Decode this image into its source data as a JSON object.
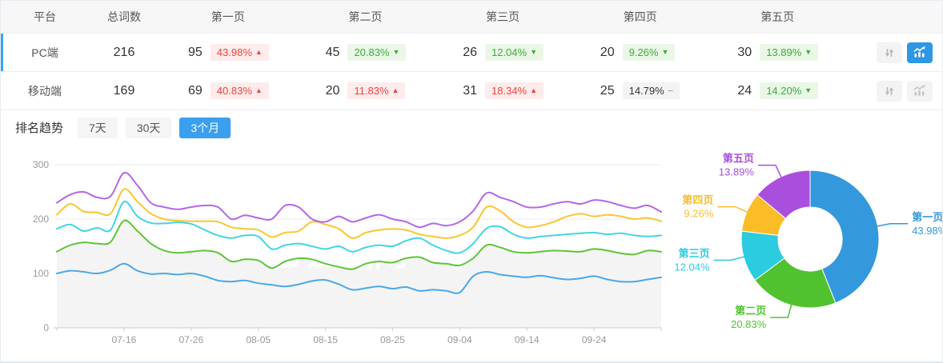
{
  "table": {
    "headers": {
      "platform": "平台",
      "total": "总词数",
      "pages": [
        "第一页",
        "第二页",
        "第三页",
        "第四页",
        "第五页"
      ]
    },
    "rows": [
      {
        "platform": "PC端",
        "total": "216",
        "selected": true,
        "pages": [
          {
            "count": "95",
            "pct": "43.98%",
            "dir": "up"
          },
          {
            "count": "45",
            "pct": "20.83%",
            "dir": "down"
          },
          {
            "count": "26",
            "pct": "12.04%",
            "dir": "down"
          },
          {
            "count": "20",
            "pct": "9.26%",
            "dir": "down"
          },
          {
            "count": "30",
            "pct": "13.89%",
            "dir": "down"
          }
        ],
        "actions": {
          "sort_active": false,
          "trend_active": true
        }
      },
      {
        "platform": "移动端",
        "total": "169",
        "selected": false,
        "pages": [
          {
            "count": "69",
            "pct": "40.83%",
            "dir": "up"
          },
          {
            "count": "20",
            "pct": "11.83%",
            "dir": "up"
          },
          {
            "count": "31",
            "pct": "18.34%",
            "dir": "up"
          },
          {
            "count": "25",
            "pct": "14.79%",
            "dir": "flat"
          },
          {
            "count": "24",
            "pct": "14.20%",
            "dir": "down"
          }
        ],
        "actions": {
          "sort_active": false,
          "trend_active": false
        }
      }
    ]
  },
  "trend": {
    "title": "排名趋势",
    "ranges": [
      {
        "label": "7天",
        "active": false
      },
      {
        "label": "30天",
        "active": false
      },
      {
        "label": "3个月",
        "active": true
      }
    ]
  },
  "colors": {
    "accent_blue": "#3b9ff0",
    "up_red": "#f0433c",
    "down_green": "#3aad3a",
    "selected_row_bar": "#3aa4f0",
    "active_icon_button": "#2e97e5"
  },
  "chart_data": [
    {
      "type": "line",
      "title": "排名趋势 3个月",
      "x_ticks": [
        "07-16",
        "07-26",
        "08-05",
        "08-15",
        "08-25",
        "09-04",
        "09-14",
        "09-24"
      ],
      "x_tick_days": [
        10,
        20,
        30,
        40,
        50,
        60,
        70,
        80
      ],
      "x_domain_days": [
        0,
        90
      ],
      "sample_step_days": 2,
      "ylim": [
        0,
        300
      ],
      "y_ticks": [
        0,
        100,
        200,
        300
      ],
      "grid": true,
      "legend_position": "none",
      "watermark": "爱站网",
      "series": [
        {
          "name": "第一页",
          "color": "#4aa7e8",
          "values": [
            100,
            105,
            103,
            100,
            106,
            118,
            105,
            99,
            100,
            98,
            100,
            95,
            87,
            85,
            87,
            82,
            79,
            76,
            80,
            86,
            88,
            80,
            70,
            73,
            76,
            72,
            75,
            68,
            70,
            68,
            65,
            95,
            103,
            98,
            95,
            93,
            96,
            92,
            89,
            91,
            95,
            89,
            85,
            85,
            89,
            93
          ]
        },
        {
          "name": "第二页",
          "color": "#5fc438",
          "area": "#f4f4f4",
          "values": [
            140,
            152,
            157,
            155,
            158,
            197,
            178,
            155,
            142,
            138,
            140,
            142,
            138,
            122,
            126,
            124,
            110,
            122,
            128,
            126,
            118,
            112,
            108,
            118,
            122,
            120,
            128,
            130,
            120,
            118,
            115,
            128,
            152,
            148,
            140,
            138,
            140,
            142,
            141,
            140,
            145,
            142,
            137,
            135,
            142,
            140
          ]
        },
        {
          "name": "第三页",
          "color": "#40d5e6",
          "values": [
            182,
            190,
            178,
            184,
            180,
            232,
            205,
            193,
            192,
            194,
            191,
            180,
            170,
            165,
            170,
            168,
            145,
            152,
            155,
            150,
            145,
            150,
            140,
            148,
            152,
            150,
            160,
            165,
            152,
            142,
            138,
            155,
            183,
            186,
            172,
            165,
            168,
            170,
            172,
            174,
            175,
            172,
            174,
            170,
            168,
            170
          ]
        },
        {
          "name": "第四页",
          "color": "#fac62f",
          "values": [
            208,
            228,
            214,
            212,
            210,
            255,
            232,
            210,
            200,
            197,
            196,
            196,
            195,
            185,
            182,
            180,
            167,
            175,
            178,
            195,
            190,
            182,
            165,
            175,
            180,
            182,
            180,
            172,
            168,
            165,
            170,
            185,
            222,
            215,
            195,
            185,
            188,
            195,
            205,
            210,
            205,
            208,
            205,
            200,
            202,
            196
          ]
        },
        {
          "name": "第五页",
          "color": "#b466e8",
          "values": [
            230,
            245,
            250,
            240,
            242,
            285,
            262,
            230,
            222,
            218,
            222,
            225,
            222,
            200,
            207,
            202,
            200,
            225,
            222,
            200,
            195,
            205,
            195,
            202,
            208,
            200,
            195,
            185,
            192,
            188,
            195,
            215,
            248,
            240,
            232,
            222,
            222,
            228,
            232,
            228,
            235,
            232,
            225,
            220,
            225,
            213
          ]
        }
      ]
    },
    {
      "type": "pie",
      "donut": true,
      "slices": [
        {
          "label": "第一页",
          "value": 43.98,
          "color": "#3398dc"
        },
        {
          "label": "第二页",
          "value": 20.83,
          "color": "#50c22f"
        },
        {
          "label": "第三页",
          "value": 12.04,
          "color": "#2bcbe0"
        },
        {
          "label": "第四页",
          "value": 9.26,
          "color": "#fabd28"
        },
        {
          "label": "第五页",
          "value": 13.89,
          "color": "#aa4fdd"
        }
      ]
    }
  ]
}
